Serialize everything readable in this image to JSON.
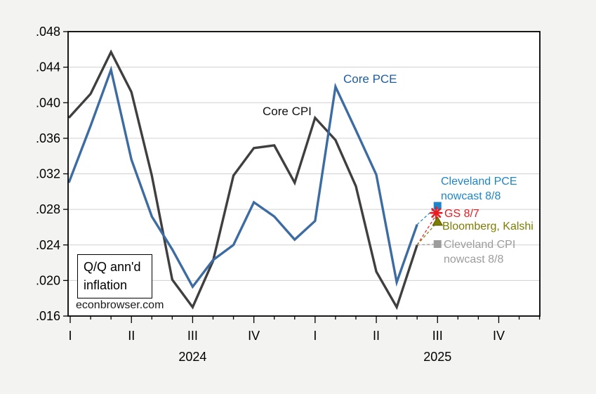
{
  "figure": {
    "watermark": "econbrowser.com",
    "note_box": {
      "line1": "Q/Q ann'd",
      "line2": "inflation"
    }
  },
  "series_labels": {
    "core_cpi": "Core CPI",
    "core_pce": "Core PCE"
  },
  "annotations": {
    "cleveland_pce": {
      "line1": "Cleveland PCE",
      "line2": "nowcast 8/8",
      "color": "#1e86c8"
    },
    "gs": {
      "label": "GS 8/7",
      "color": "#e81b23"
    },
    "bloomberg_kalshi": {
      "label": "Bloomberg, Kalshi",
      "color": "#7d7d00"
    },
    "cleveland_cpi": {
      "line1": "Cleveland CPI",
      "line2": "nowcast 8/8",
      "color": "#9c9c9c"
    }
  },
  "chart_data": {
    "type": "line",
    "title": "",
    "subtitle": "Q/Q ann'd inflation",
    "source_text": "econbrowser.com",
    "x": [
      "2024-01",
      "2024-02",
      "2024-03",
      "2024-04",
      "2024-05",
      "2024-06",
      "2024-07",
      "2024-08",
      "2024-09",
      "2024-10",
      "2024-11",
      "2024-12",
      "2025-01",
      "2025-02",
      "2025-03",
      "2025-04",
      "2025-05",
      "2025-06"
    ],
    "series": [
      {
        "name": "Core CPI",
        "color": "#3f3f3f",
        "values": [
          0.0383,
          0.041,
          0.0457,
          0.0412,
          0.0318,
          0.0201,
          0.017,
          0.0222,
          0.0318,
          0.0349,
          0.0352,
          0.031,
          0.0383,
          0.0358,
          0.0306,
          0.021,
          0.017,
          0.024
        ]
      },
      {
        "name": "Core PCE",
        "color": "#3d6ca3",
        "values": [
          0.031,
          0.0374,
          0.0437,
          0.0336,
          0.0272,
          0.0235,
          0.0193,
          0.0223,
          0.024,
          0.0288,
          0.0272,
          0.0246,
          0.0267,
          0.0418,
          0.0369,
          0.0319,
          0.0198,
          0.0263
        ]
      }
    ],
    "forecast_markers": [
      {
        "label": "Cleveland PCE nowcast 8/8",
        "shape": "square",
        "color": "#1e86c8",
        "value": 0.0284,
        "x": "2025-07",
        "from_series": "Core PCE"
      },
      {
        "label": "GS 8/7",
        "shape": "star",
        "color": "#e81b23",
        "value": 0.0276,
        "x": "2025-07",
        "from_series": "Core CPI"
      },
      {
        "label": "Bloomberg, Kalshi",
        "shape": "triangle",
        "color": "#7d7d00",
        "value": 0.0266,
        "x": "2025-07",
        "from_series": "Core CPI"
      },
      {
        "label": "Cleveland CPI nowcast 8/8",
        "shape": "square",
        "color": "#9c9c9c",
        "value": 0.0241,
        "x": "2025-07",
        "from_series": "Core CPI"
      }
    ],
    "ylim": [
      0.016,
      0.048
    ],
    "ytick_labels": [
      ".016",
      ".020",
      ".024",
      ".028",
      ".032",
      ".036",
      ".040",
      ".044",
      ".048"
    ],
    "x_axis": {
      "quarter_labels": [
        "I",
        "II",
        "III",
        "IV",
        "I",
        "II",
        "III",
        "IV"
      ],
      "year_labels": [
        "2024",
        "2025"
      ]
    },
    "grid": "horizontal",
    "legend": "none"
  }
}
